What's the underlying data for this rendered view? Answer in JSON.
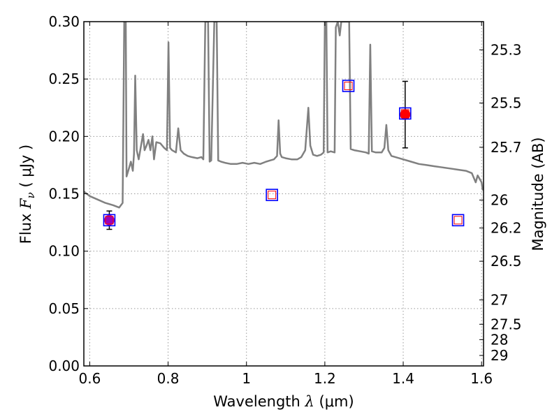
{
  "chart_data": {
    "type": "line",
    "title": "",
    "xlabel": {
      "prefix": "Wavelength  ",
      "symbol": "λ",
      "unit": " (μm)"
    },
    "ylabel": {
      "prefix": "Flux  ",
      "symbol": "F",
      "sub": "ν",
      "unit": "  ( μJy )"
    },
    "y2label": "Magnitude (AB)",
    "xlim": [
      0.585,
      1.605
    ],
    "ylim": [
      0.0,
      0.3
    ],
    "grid": true,
    "x_ticks": [
      0.6,
      0.8,
      1.0,
      1.2,
      1.4,
      1.6
    ],
    "x_tick_labels": [
      "0.6",
      "0.8",
      "1",
      "1.2",
      "1.4",
      "1.6"
    ],
    "y_ticks": [
      0.0,
      0.05,
      0.1,
      0.15,
      0.2,
      0.25,
      0.3
    ],
    "y_tick_labels": [
      "0.00",
      "0.05",
      "0.10",
      "0.15",
      "0.20",
      "0.25",
      "0.30"
    ],
    "mag_ticks": [
      25.3,
      25.5,
      25.7,
      26,
      26.2,
      26.5,
      27,
      27.5,
      28,
      29
    ],
    "mag_tick_labels": [
      "25.3",
      "25.5",
      "25.7",
      "26",
      "26.2",
      "26.5",
      "27",
      "27.5",
      "28",
      "29"
    ],
    "mag_zero_point_ujy": 3631000000,
    "colors": {
      "model": "#808080",
      "observed": "#ff0000",
      "observed_faint": "#9900bb",
      "model_box_outer": "#0000ff",
      "model_box_inner": "#ff0000",
      "errorbar": "#000000",
      "grid": "#999999"
    },
    "model_spectrum": [
      [
        0.585,
        0.152
      ],
      [
        0.6,
        0.148
      ],
      [
        0.62,
        0.145
      ],
      [
        0.64,
        0.142
      ],
      [
        0.66,
        0.14
      ],
      [
        0.675,
        0.138
      ],
      [
        0.684,
        0.142
      ],
      [
        0.688,
        0.3
      ],
      [
        0.692,
        0.3
      ],
      [
        0.694,
        0.165
      ],
      [
        0.7,
        0.172
      ],
      [
        0.705,
        0.178
      ],
      [
        0.71,
        0.17
      ],
      [
        0.713,
        0.185
      ],
      [
        0.716,
        0.253
      ],
      [
        0.72,
        0.188
      ],
      [
        0.725,
        0.18
      ],
      [
        0.73,
        0.19
      ],
      [
        0.736,
        0.202
      ],
      [
        0.74,
        0.188
      ],
      [
        0.745,
        0.192
      ],
      [
        0.75,
        0.197
      ],
      [
        0.755,
        0.188
      ],
      [
        0.76,
        0.2
      ],
      [
        0.764,
        0.18
      ],
      [
        0.77,
        0.195
      ],
      [
        0.78,
        0.194
      ],
      [
        0.79,
        0.19
      ],
      [
        0.797,
        0.188
      ],
      [
        0.801,
        0.282
      ],
      [
        0.805,
        0.19
      ],
      [
        0.81,
        0.188
      ],
      [
        0.82,
        0.186
      ],
      [
        0.826,
        0.207
      ],
      [
        0.832,
        0.188
      ],
      [
        0.84,
        0.185
      ],
      [
        0.85,
        0.183
      ],
      [
        0.86,
        0.182
      ],
      [
        0.875,
        0.181
      ],
      [
        0.885,
        0.182
      ],
      [
        0.89,
        0.18
      ],
      [
        0.895,
        0.3
      ],
      [
        0.902,
        0.3
      ],
      [
        0.906,
        0.178
      ],
      [
        0.91,
        0.179
      ],
      [
        0.918,
        0.3
      ],
      [
        0.924,
        0.3
      ],
      [
        0.928,
        0.179
      ],
      [
        0.935,
        0.178
      ],
      [
        0.945,
        0.177
      ],
      [
        0.96,
        0.176
      ],
      [
        0.975,
        0.176
      ],
      [
        0.99,
        0.177
      ],
      [
        1.005,
        0.176
      ],
      [
        1.02,
        0.177
      ],
      [
        1.035,
        0.176
      ],
      [
        1.05,
        0.178
      ],
      [
        1.06,
        0.179
      ],
      [
        1.07,
        0.18
      ],
      [
        1.078,
        0.183
      ],
      [
        1.082,
        0.214
      ],
      [
        1.086,
        0.185
      ],
      [
        1.09,
        0.182
      ],
      [
        1.1,
        0.181
      ],
      [
        1.115,
        0.18
      ],
      [
        1.13,
        0.18
      ],
      [
        1.14,
        0.182
      ],
      [
        1.15,
        0.188
      ],
      [
        1.158,
        0.225
      ],
      [
        1.163,
        0.192
      ],
      [
        1.17,
        0.184
      ],
      [
        1.18,
        0.183
      ],
      [
        1.19,
        0.184
      ],
      [
        1.197,
        0.186
      ],
      [
        1.2,
        0.3
      ],
      [
        1.204,
        0.3
      ],
      [
        1.207,
        0.186
      ],
      [
        1.215,
        0.187
      ],
      [
        1.225,
        0.186
      ],
      [
        1.228,
        0.295
      ],
      [
        1.233,
        0.3
      ],
      [
        1.238,
        0.288
      ],
      [
        1.242,
        0.3
      ],
      [
        1.247,
        0.3
      ],
      [
        1.252,
        0.3
      ],
      [
        1.257,
        0.3
      ],
      [
        1.262,
        0.3
      ],
      [
        1.266,
        0.189
      ],
      [
        1.275,
        0.188
      ],
      [
        1.29,
        0.187
      ],
      [
        1.305,
        0.186
      ],
      [
        1.312,
        0.185
      ],
      [
        1.316,
        0.28
      ],
      [
        1.32,
        0.187
      ],
      [
        1.33,
        0.186
      ],
      [
        1.345,
        0.186
      ],
      [
        1.352,
        0.19
      ],
      [
        1.357,
        0.21
      ],
      [
        1.362,
        0.188
      ],
      [
        1.37,
        0.183
      ],
      [
        1.38,
        0.182
      ],
      [
        1.4,
        0.18
      ],
      [
        1.42,
        0.178
      ],
      [
        1.44,
        0.176
      ],
      [
        1.46,
        0.175
      ],
      [
        1.48,
        0.174
      ],
      [
        1.5,
        0.173
      ],
      [
        1.52,
        0.172
      ],
      [
        1.54,
        0.171
      ],
      [
        1.56,
        0.17
      ],
      [
        1.575,
        0.168
      ],
      [
        1.585,
        0.16
      ],
      [
        1.59,
        0.166
      ],
      [
        1.595,
        0.163
      ],
      [
        1.6,
        0.16
      ],
      [
        1.603,
        0.153
      ]
    ],
    "observed": [
      {
        "x": 0.65,
        "y": 0.127,
        "yerr": 0.008,
        "style": "observed_faint"
      },
      {
        "x": 1.405,
        "y": 0.219,
        "yerr": 0.029,
        "style": "observed"
      }
    ],
    "model_photometry": [
      {
        "x": 0.65,
        "y": 0.127
      },
      {
        "x": 1.065,
        "y": 0.149
      },
      {
        "x": 1.26,
        "y": 0.244
      },
      {
        "x": 1.405,
        "y": 0.22
      },
      {
        "x": 1.54,
        "y": 0.127
      }
    ]
  }
}
